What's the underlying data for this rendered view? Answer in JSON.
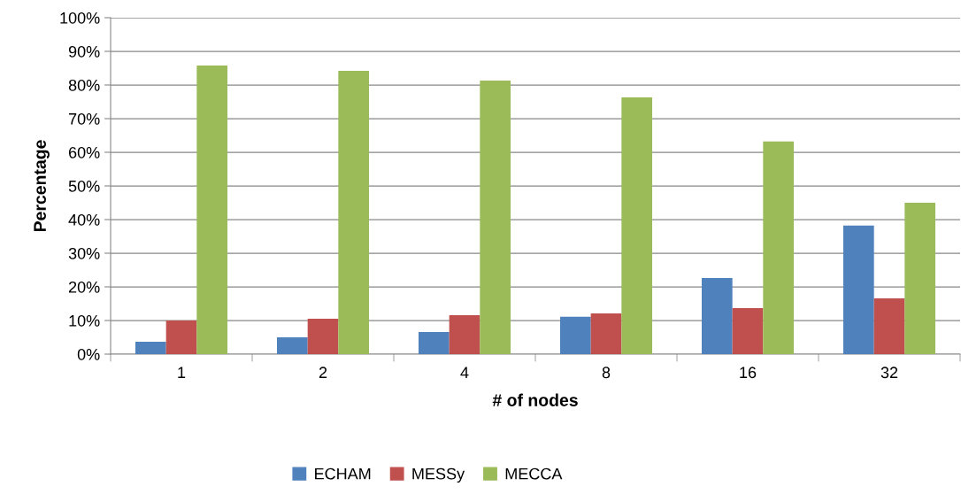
{
  "chart_data": {
    "type": "bar",
    "categories": [
      "1",
      "2",
      "4",
      "8",
      "16",
      "32"
    ],
    "series": [
      {
        "name": "ECHAM",
        "color": "#4f81bd",
        "values": [
          3.7,
          5.0,
          6.6,
          11.1,
          22.6,
          38.2
        ]
      },
      {
        "name": "MESSy",
        "color": "#c0504d",
        "values": [
          10.0,
          10.5,
          11.6,
          12.1,
          13.7,
          16.6
        ]
      },
      {
        "name": "MECCA",
        "color": "#9bbb59",
        "values": [
          85.8,
          84.2,
          81.3,
          76.3,
          63.2,
          45.0
        ]
      }
    ],
    "xlabel": "# of nodes",
    "ylabel": "Percentage",
    "ylim": [
      0,
      100
    ],
    "yticks": [
      {
        "value": 0,
        "label": "0%"
      },
      {
        "value": 10,
        "label": "10%"
      },
      {
        "value": 20,
        "label": "20%"
      },
      {
        "value": 30,
        "label": "30%"
      },
      {
        "value": 40,
        "label": "40%"
      },
      {
        "value": 50,
        "label": "50%"
      },
      {
        "value": 60,
        "label": "60%"
      },
      {
        "value": 70,
        "label": "70%"
      },
      {
        "value": 80,
        "label": "80%"
      },
      {
        "value": 90,
        "label": "90%"
      },
      {
        "value": 100,
        "label": "100%"
      }
    ],
    "grid": "y",
    "legend": "bottom"
  }
}
